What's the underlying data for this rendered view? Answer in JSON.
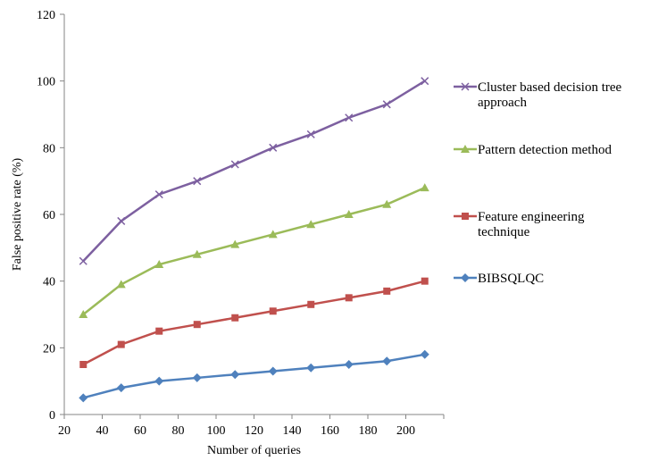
{
  "chart_data": {
    "type": "line",
    "title": "",
    "xlabel": "Number of queries",
    "ylabel": "False positive rate (%)",
    "xlim": [
      20,
      220
    ],
    "ylim": [
      0,
      120
    ],
    "x_ticks": [
      20,
      40,
      60,
      80,
      100,
      120,
      140,
      160,
      180,
      200
    ],
    "y_ticks": [
      0,
      20,
      40,
      60,
      80,
      100,
      120
    ],
    "grid": false,
    "legend_position": "right",
    "x": [
      30,
      50,
      70,
      90,
      110,
      130,
      150,
      170,
      190,
      210
    ],
    "series": [
      {
        "name": "Cluster based decision tree approach",
        "legend_lines": [
          "Cluster based decision tree",
          "approach"
        ],
        "color": "#7D60A0",
        "marker": "x",
        "values": [
          46,
          58,
          66,
          70,
          75,
          80,
          84,
          89,
          93,
          100
        ]
      },
      {
        "name": "Pattern detection method",
        "legend_lines": [
          "Pattern detection method"
        ],
        "color": "#9BBB59",
        "marker": "triangle",
        "values": [
          30,
          39,
          45,
          48,
          51,
          54,
          57,
          60,
          63,
          68
        ]
      },
      {
        "name": "Feature engineering technique",
        "legend_lines": [
          "Feature engineering",
          "technique"
        ],
        "color": "#C0504D",
        "marker": "square",
        "values": [
          15,
          21,
          25,
          27,
          29,
          31,
          33,
          35,
          37,
          40
        ]
      },
      {
        "name": "BIBSQLQC",
        "legend_lines": [
          "BIBSQLQC"
        ],
        "color": "#4F81BD",
        "marker": "diamond",
        "values": [
          5,
          8,
          10,
          11,
          12,
          13,
          14,
          15,
          16,
          18
        ]
      }
    ]
  }
}
